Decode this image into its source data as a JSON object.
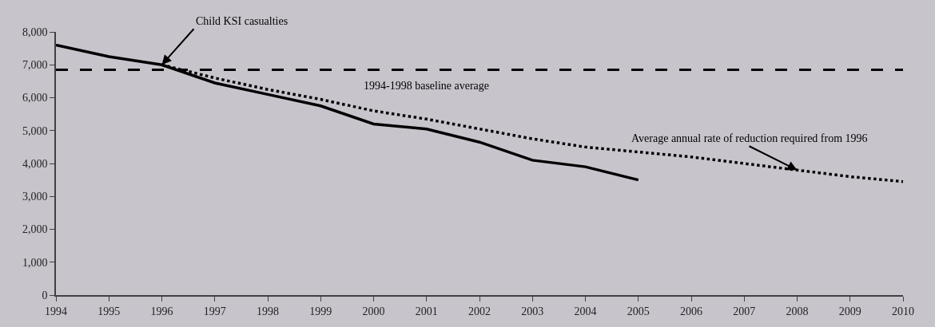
{
  "chart_data": {
    "type": "line",
    "series": [
      {
        "x": [
          1994,
          1995,
          1996,
          1997,
          1998,
          1999,
          2000,
          2001,
          2002,
          2003,
          2004,
          2005
        ],
        "values": [
          7600,
          7250,
          7000,
          6450,
          6100,
          5750,
          5200,
          5050,
          4650,
          4100,
          3900,
          3500
        ],
        "color": "#000000",
        "line_style": "solid"
      },
      {
        "x": [
          1996,
          1997,
          1998,
          1999,
          2000,
          2001,
          2002,
          2003,
          2004,
          2005,
          2006,
          2007,
          2008,
          2009,
          2010
        ],
        "values": [
          7000,
          6600,
          6250,
          5950,
          5600,
          5350,
          5050,
          4750,
          4500,
          4350,
          4200,
          4000,
          3800,
          3600,
          3450
        ],
        "color": "#000000",
        "line_style": "dotted"
      }
    ],
    "xlim": [
      1994,
      2010
    ],
    "xticks": [
      1994,
      1995,
      1996,
      1997,
      1998,
      1999,
      2000,
      2001,
      2002,
      2003,
      2004,
      2005,
      2006,
      2007,
      2008,
      2009,
      2010
    ],
    "ylim": [
      0,
      8000
    ],
    "yticks": [
      {
        "value": 0,
        "label": "0"
      },
      {
        "value": 1000,
        "label": "1,000"
      },
      {
        "value": 2000,
        "label": "2,000"
      },
      {
        "value": 3000,
        "label": "3,000"
      },
      {
        "value": 4000,
        "label": "4,000"
      },
      {
        "value": 5000,
        "label": "5,000"
      },
      {
        "value": 6000,
        "label": "6,000"
      },
      {
        "value": 7000,
        "label": "7,000"
      },
      {
        "value": 8000,
        "label": "8,000"
      }
    ],
    "ref_lines": [
      {
        "axis": "y",
        "value": 6850,
        "label": "1994-1998 baseline average",
        "color": "#000000",
        "line_style": "dashed"
      }
    ],
    "annotations": [
      {
        "text": "Child KSI casualties",
        "x": 1996,
        "y": 7000
      },
      {
        "text": "Average annual rate of reduction required from 1996",
        "x": 2008,
        "y": 3800
      }
    ],
    "grid": false,
    "marker": "none"
  }
}
